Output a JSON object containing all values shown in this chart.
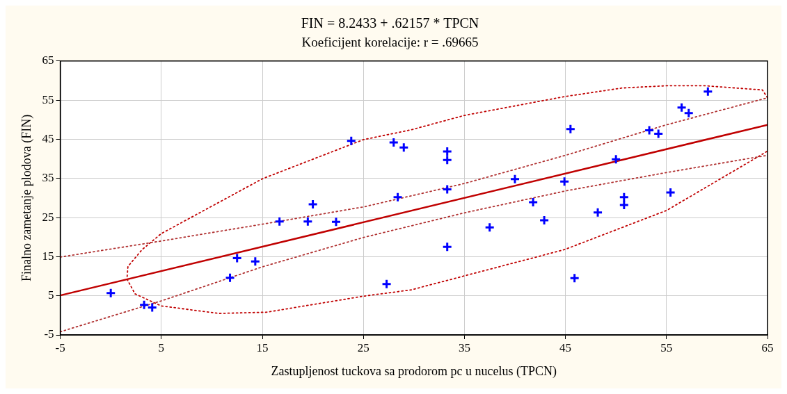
{
  "chart_data": {
    "type": "scatter",
    "title": "FIN = 8.2433 + .62157 * TPCN",
    "subtitle": "Koeficijent korelacije: r = .69665",
    "xlabel": "Zastupljenost tuckova sa prodorom pc u nucelus (TPCN)",
    "ylabel": "Finalno zametanje plodova (FIN)",
    "xlim": [
      -5,
      65
    ],
    "ylim": [
      -5,
      65
    ],
    "xticks": [
      -5,
      5,
      15,
      25,
      35,
      45,
      55,
      65
    ],
    "yticks": [
      -5,
      5,
      15,
      25,
      35,
      45,
      55,
      65
    ],
    "grid": true,
    "series": [
      {
        "color": "#0000ff",
        "marker": "cross",
        "x": [
          0.0,
          3.3,
          4.1,
          11.8,
          12.5,
          14.3,
          16.7,
          19.5,
          20.0,
          22.3,
          23.8,
          27.3,
          28.0,
          28.4,
          29.0,
          33.3,
          33.3,
          33.3,
          33.3,
          37.5,
          40.0,
          41.8,
          42.9,
          44.9,
          45.5,
          45.9,
          48.2,
          50.0,
          50.8,
          50.8,
          53.3,
          54.2,
          55.4,
          56.5,
          57.2,
          59.1
        ],
        "values": [
          5.7,
          2.7,
          2.0,
          9.6,
          14.6,
          13.8,
          24.0,
          24.0,
          28.4,
          23.9,
          44.6,
          8.0,
          44.2,
          30.2,
          42.9,
          41.9,
          39.7,
          32.2,
          17.5,
          22.5,
          34.8,
          28.9,
          24.3,
          34.2,
          47.6,
          9.5,
          26.3,
          39.9,
          30.2,
          28.2,
          47.3,
          46.4,
          31.4,
          53.1,
          51.7,
          57.2
        ]
      },
      {
        "type": "line",
        "color": "#c00000",
        "marker": "none",
        "line_style": "solid",
        "x": [
          -5,
          65
        ],
        "values": [
          5.1,
          48.7
        ]
      },
      {
        "type": "line",
        "color": "#b03030",
        "marker": "none",
        "line_style": "dotted",
        "x": [
          -5,
          5,
          15,
          25,
          35,
          45,
          55,
          65
        ],
        "values": [
          14.9,
          19.0,
          23.3,
          27.7,
          33.7,
          40.9,
          48.7,
          55.6
        ]
      },
      {
        "type": "line",
        "color": "#b03030",
        "marker": "none",
        "line_style": "dotted",
        "x": [
          -5,
          5,
          15,
          25,
          35,
          45,
          55,
          65
        ],
        "values": [
          -4.2,
          3.7,
          12.4,
          19.9,
          26.2,
          31.8,
          36.5,
          40.9
        ]
      },
      {
        "type": "line",
        "color": "#c00000",
        "marker": "none",
        "line_style": "dotted",
        "x": [
          65,
          64.5,
          58.7,
          55.2,
          50.6,
          44.9,
          35.0,
          29.7,
          25.0,
          15.0,
          5.0,
          3.1,
          1.7,
          1.6,
          2.4,
          5.0,
          10.7,
          15.4,
          25.0,
          29.7,
          44.9,
          55.0,
          64.5,
          65
        ],
        "values": [
          55.6,
          57.6,
          58.7,
          58.7,
          58.1,
          55.9,
          51.1,
          47.4,
          44.9,
          34.9,
          20.9,
          16.8,
          12.5,
          9.3,
          5.5,
          2.4,
          0.5,
          0.8,
          4.9,
          6.5,
          16.8,
          26.8,
          41.2,
          42.0
        ]
      }
    ]
  }
}
